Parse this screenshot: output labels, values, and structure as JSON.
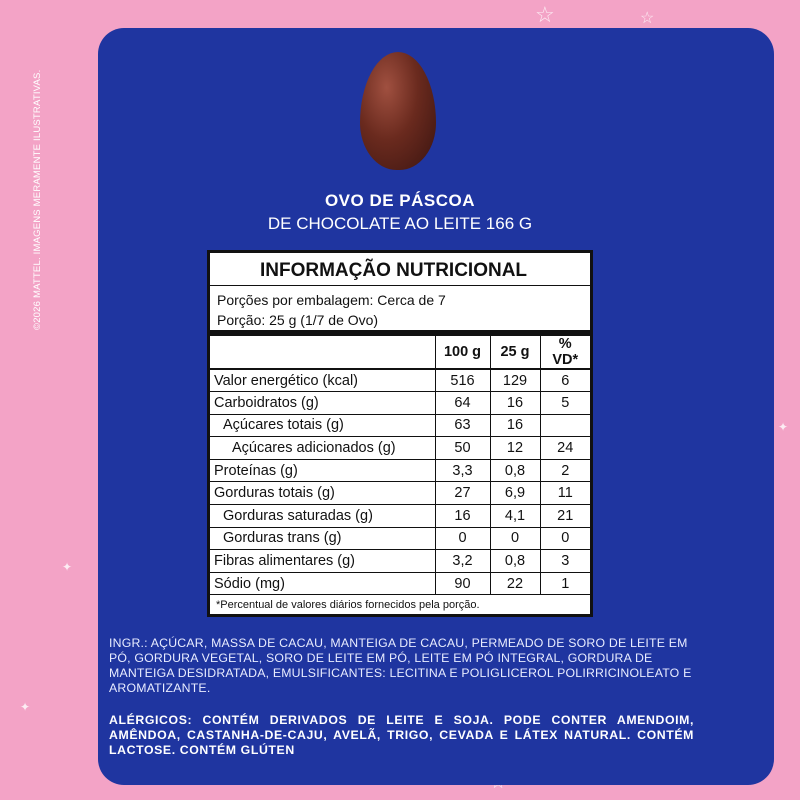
{
  "copyright": "©2026 MATTEL. IMAGENS MERAMENTE ILUSTRATIVAS.",
  "title": "OVO DE PÁSCOA",
  "subtitle": "DE CHOCOLATE AO LEITE 166 G",
  "nutrition": {
    "heading": "INFORMAÇÃO NUTRICIONAL",
    "servings": "Porções por embalagem: Cerca de 7",
    "portion": "Porção: 25 g (1/7 de Ovo)",
    "columns": [
      "",
      "100 g",
      "25 g",
      "% VD*"
    ],
    "rows": [
      {
        "label": "Valor energético (kcal)",
        "v100": "516",
        "v25": "129",
        "vd": "6",
        "indent": 0
      },
      {
        "label": "Carboidratos (g)",
        "v100": "64",
        "v25": "16",
        "vd": "5",
        "indent": 0
      },
      {
        "label": "Açúcares totais (g)",
        "v100": "63",
        "v25": "16",
        "vd": "",
        "indent": 1
      },
      {
        "label": "Açúcares adicionados (g)",
        "v100": "50",
        "v25": "12",
        "vd": "24",
        "indent": 2
      },
      {
        "label": "Proteínas (g)",
        "v100": "3,3",
        "v25": "0,8",
        "vd": "2",
        "indent": 0
      },
      {
        "label": "Gorduras totais (g)",
        "v100": "27",
        "v25": "6,9",
        "vd": "11",
        "indent": 0
      },
      {
        "label": "Gorduras saturadas (g)",
        "v100": "16",
        "v25": "4,1",
        "vd": "21",
        "indent": 1
      },
      {
        "label": "Gorduras trans (g)",
        "v100": "0",
        "v25": "0",
        "vd": "0",
        "indent": 1
      },
      {
        "label": "Fibras alimentares (g)",
        "v100": "3,2",
        "v25": "0,8",
        "vd": "3",
        "indent": 0
      },
      {
        "label": "Sódio (mg)",
        "v100": "90",
        "v25": "22",
        "vd": "1",
        "indent": 0
      }
    ],
    "footnote": "*Percentual de valores diários fornecidos pela porção."
  },
  "ingredients": "INGR.: AÇÚCAR, MASSA DE CACAU, MANTEIGA DE CACAU, PERMEADO DE SORO DE LEITE EM PÓ, GORDURA VEGETAL, SORO DE LEITE EM PÓ, LEITE EM PÓ INTEGRAL, GORDURA DE MANTEIGA DESIDRATADA, EMULSIFICANTES: LECITINA E POLIGLICEROL POLIRRICINOLEATO E AROMATIZANTE.",
  "allergens": "ALÉRGICOS: CONTÉM DERIVADOS DE LEITE E SOJA. PODE CONTER AMENDOIM, AMÊNDOA, CASTANHA-DE-CAJU, AVELÃ, TRIGO, CEVADA E LÁTEX NATURAL. CONTÉM LACTOSE. CONTÉM GLÚTEN",
  "colors": {
    "background": "#f3a3c6",
    "card": "#1f35a0"
  }
}
